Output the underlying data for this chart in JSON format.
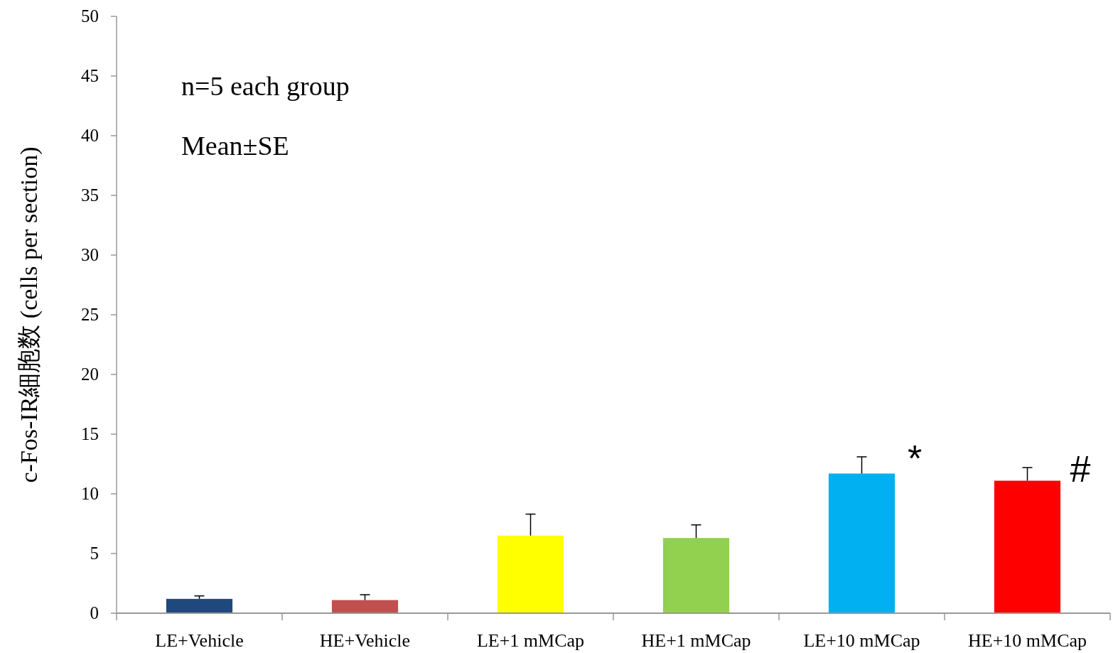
{
  "chart_data": {
    "type": "bar",
    "ylabel": "c-Fos-IR細胞数 (cells per section)",
    "categories": [
      "LE+Vehicle",
      "HE+Vehicle",
      "LE+1 mMCap",
      "HE+1 mMCap",
      "LE+10 mMCap",
      "HE+10 mMCap"
    ],
    "values": [
      1.2,
      1.1,
      6.5,
      6.3,
      11.7,
      11.1
    ],
    "colors": [
      "#1f497d",
      "#c0504d",
      "#ffff00",
      "#92d050",
      "#00b0f0",
      "#ff0000"
    ],
    "errors": [
      [
        1.2,
        1.45
      ],
      [
        1.1,
        1.55
      ],
      [
        6.5,
        8.3
      ],
      [
        6.3,
        7.4
      ],
      [
        11.7,
        13.1
      ],
      [
        11.1,
        12.2
      ]
    ],
    "ylim": [
      0,
      50
    ],
    "yticks": [
      0,
      5,
      10,
      15,
      20,
      25,
      30,
      35,
      40,
      45,
      50
    ],
    "annotations": [
      "n=5 each group",
      "Mean±SE",
      {
        "text": "*",
        "x": "LE+10 mMCap",
        "y": 13.1
      },
      {
        "text": "#",
        "x": "HE+10 mMCap",
        "y": 12.2
      }
    ]
  }
}
